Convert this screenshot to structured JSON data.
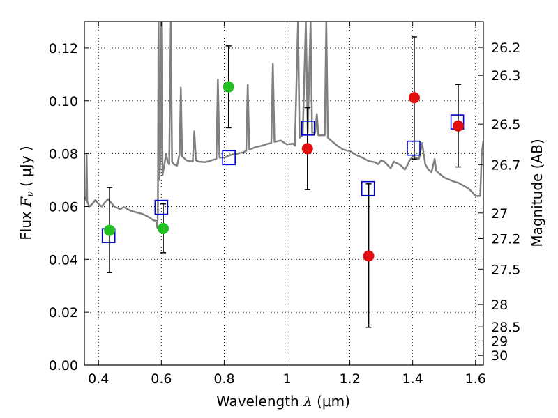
{
  "chart_data": {
    "type": "scatter",
    "xlabel_prefix": "Wavelength",
    "xlabel_symbol": "λ",
    "xlabel_unit": "(μm)",
    "ylabel_prefix": "Flux",
    "ylabel_symbol": "F",
    "ylabel_subscript": "ν",
    "ylabel_unit": "( μJy )",
    "y2label": "Magnitude (AB)",
    "xlim": [
      0.355,
      1.625
    ],
    "ylim": [
      0.0,
      0.13
    ],
    "xticks": [
      0.4,
      0.6,
      0.8,
      1.0,
      1.2,
      1.4,
      1.6
    ],
    "xtick_labels": [
      "0.4",
      "0.6",
      "0.8",
      "1",
      "1.2",
      "1.4",
      "1.6"
    ],
    "yticks": [
      0.0,
      0.02,
      0.04,
      0.06,
      0.08,
      0.1,
      0.12
    ],
    "ytick_labels": [
      "0.00",
      "0.02",
      "0.04",
      "0.06",
      "0.08",
      "0.10",
      "0.12"
    ],
    "mag_ticks": [
      "26.2",
      "26.3",
      "26.5",
      "26.7",
      "27",
      "27.2",
      "27.5",
      "28",
      "28.5",
      "29",
      "30"
    ],
    "grid": true,
    "colors": {
      "spectrum": "#808080",
      "green_points": "#22c022",
      "red_points": "#e01010",
      "model_squares": "#0000cc",
      "error_bars": "#000000"
    },
    "observed_green": [
      {
        "x": 0.435,
        "y": 0.051,
        "yerr_low": 0.016,
        "yerr_high": 0.0162
      },
      {
        "x": 0.606,
        "y": 0.0517,
        "yerr_low": 0.0092,
        "yerr_high": 0.0093
      },
      {
        "x": 0.814,
        "y": 0.1053,
        "yerr_low": 0.0155,
        "yerr_high": 0.0155
      }
    ],
    "observed_red": [
      {
        "x": 1.065,
        "y": 0.0819,
        "yerr_low": 0.0155,
        "yerr_high": 0.0155
      },
      {
        "x": 1.26,
        "y": 0.0413,
        "yerr_low": 0.027,
        "yerr_high": 0.0273
      },
      {
        "x": 1.405,
        "y": 0.1012,
        "yerr_low": 0.0232,
        "yerr_high": 0.023
      },
      {
        "x": 1.545,
        "y": 0.0905,
        "yerr_low": 0.0155,
        "yerr_high": 0.0157
      }
    ],
    "model_points": [
      {
        "x": 0.432,
        "y": 0.049
      },
      {
        "x": 0.6,
        "y": 0.0597
      },
      {
        "x": 0.815,
        "y": 0.0785
      },
      {
        "x": 1.067,
        "y": 0.0897
      },
      {
        "x": 1.258,
        "y": 0.0668
      },
      {
        "x": 1.403,
        "y": 0.0821
      },
      {
        "x": 1.542,
        "y": 0.092
      }
    ],
    "spectrum": [
      [
        0.355,
        0.0635
      ],
      [
        0.36,
        0.0625
      ],
      [
        0.362,
        0.0795
      ],
      [
        0.364,
        0.062
      ],
      [
        0.37,
        0.06
      ],
      [
        0.38,
        0.061
      ],
      [
        0.39,
        0.0625
      ],
      [
        0.4,
        0.061
      ],
      [
        0.41,
        0.06
      ],
      [
        0.42,
        0.0615
      ],
      [
        0.43,
        0.0628
      ],
      [
        0.44,
        0.0615
      ],
      [
        0.45,
        0.06
      ],
      [
        0.46,
        0.0595
      ],
      [
        0.47,
        0.059
      ],
      [
        0.48,
        0.0598
      ],
      [
        0.49,
        0.0592
      ],
      [
        0.5,
        0.0585
      ],
      [
        0.52,
        0.0578
      ],
      [
        0.54,
        0.0572
      ],
      [
        0.56,
        0.056
      ],
      [
        0.575,
        0.0548
      ],
      [
        0.585,
        0.0545
      ],
      [
        0.587,
        0.052
      ],
      [
        0.589,
        0.058
      ],
      [
        0.591,
        0.13
      ],
      [
        0.594,
        0.07
      ],
      [
        0.597,
        0.078
      ],
      [
        0.6,
        0.13
      ],
      [
        0.604,
        0.072
      ],
      [
        0.61,
        0.076
      ],
      [
        0.615,
        0.08
      ],
      [
        0.62,
        0.077
      ],
      [
        0.625,
        0.076
      ],
      [
        0.63,
        0.13
      ],
      [
        0.634,
        0.077
      ],
      [
        0.64,
        0.076
      ],
      [
        0.65,
        0.0755
      ],
      [
        0.658,
        0.08
      ],
      [
        0.662,
        0.105
      ],
      [
        0.666,
        0.079
      ],
      [
        0.68,
        0.0775
      ],
      [
        0.7,
        0.077
      ],
      [
        0.705,
        0.0885
      ],
      [
        0.71,
        0.0775
      ],
      [
        0.72,
        0.077
      ],
      [
        0.74,
        0.0768
      ],
      [
        0.76,
        0.0775
      ],
      [
        0.775,
        0.078
      ],
      [
        0.78,
        0.108
      ],
      [
        0.785,
        0.0785
      ],
      [
        0.8,
        0.0785
      ],
      [
        0.82,
        0.0795
      ],
      [
        0.84,
        0.08
      ],
      [
        0.86,
        0.0805
      ],
      [
        0.87,
        0.081
      ],
      [
        0.875,
        0.106
      ],
      [
        0.88,
        0.0815
      ],
      [
        0.9,
        0.0825
      ],
      [
        0.92,
        0.083
      ],
      [
        0.94,
        0.0838
      ],
      [
        0.95,
        0.084
      ],
      [
        0.955,
        0.114
      ],
      [
        0.96,
        0.0845
      ],
      [
        0.98,
        0.085
      ],
      [
        1.0,
        0.0835
      ],
      [
        1.02,
        0.0838
      ],
      [
        1.025,
        0.083
      ],
      [
        1.035,
        0.13
      ],
      [
        1.04,
        0.086
      ],
      [
        1.05,
        0.087
      ],
      [
        1.06,
        0.13
      ],
      [
        1.066,
        0.088
      ],
      [
        1.075,
        0.13
      ],
      [
        1.08,
        0.088
      ],
      [
        1.09,
        0.088
      ],
      [
        1.095,
        0.095
      ],
      [
        1.1,
        0.087
      ],
      [
        1.12,
        0.087
      ],
      [
        1.125,
        0.13
      ],
      [
        1.13,
        0.086
      ],
      [
        1.14,
        0.085
      ],
      [
        1.15,
        0.084
      ],
      [
        1.16,
        0.083
      ],
      [
        1.18,
        0.0815
      ],
      [
        1.2,
        0.081
      ],
      [
        1.22,
        0.0795
      ],
      [
        1.24,
        0.0785
      ],
      [
        1.26,
        0.0772
      ],
      [
        1.28,
        0.0768
      ],
      [
        1.29,
        0.076
      ],
      [
        1.3,
        0.0775
      ],
      [
        1.31,
        0.077
      ],
      [
        1.33,
        0.0745
      ],
      [
        1.34,
        0.077
      ],
      [
        1.36,
        0.0758
      ],
      [
        1.375,
        0.074
      ],
      [
        1.385,
        0.076
      ],
      [
        1.39,
        0.0775
      ],
      [
        1.4,
        0.079
      ],
      [
        1.41,
        0.0785
      ],
      [
        1.42,
        0.078
      ],
      [
        1.43,
        0.084
      ],
      [
        1.44,
        0.076
      ],
      [
        1.45,
        0.074
      ],
      [
        1.46,
        0.073
      ],
      [
        1.47,
        0.078
      ],
      [
        1.475,
        0.0735
      ],
      [
        1.49,
        0.072
      ],
      [
        1.5,
        0.071
      ],
      [
        1.51,
        0.0705
      ],
      [
        1.52,
        0.07
      ],
      [
        1.53,
        0.0695
      ],
      [
        1.545,
        0.069
      ],
      [
        1.56,
        0.068
      ],
      [
        1.575,
        0.067
      ],
      [
        1.585,
        0.066
      ],
      [
        1.6,
        0.064
      ],
      [
        1.615,
        0.064
      ],
      [
        1.62,
        0.08
      ],
      [
        1.625,
        0.085
      ]
    ]
  }
}
